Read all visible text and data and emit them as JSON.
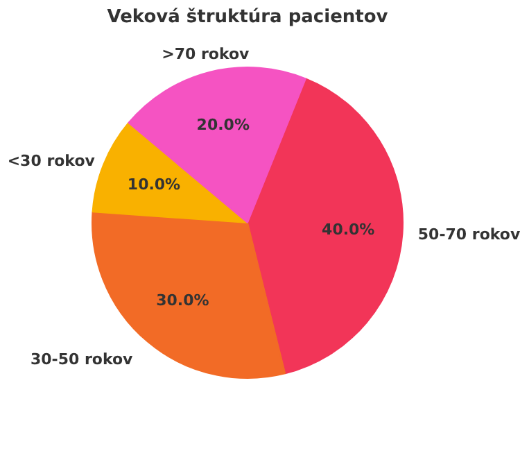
{
  "chart_data": {
    "type": "pie",
    "title": "Veková štruktúra pacientov",
    "categories": [
      "50-70 rokov",
      "30-50 rokov",
      "<30 rokov",
      ">70 rokov"
    ],
    "values": [
      40,
      30,
      10,
      20
    ],
    "colors": [
      "#f23558",
      "#f26b26",
      "#f9b100",
      "#f553c2"
    ],
    "value_labels": [
      "40.0%",
      "30.0%",
      "10.0%",
      "20.0%"
    ]
  }
}
